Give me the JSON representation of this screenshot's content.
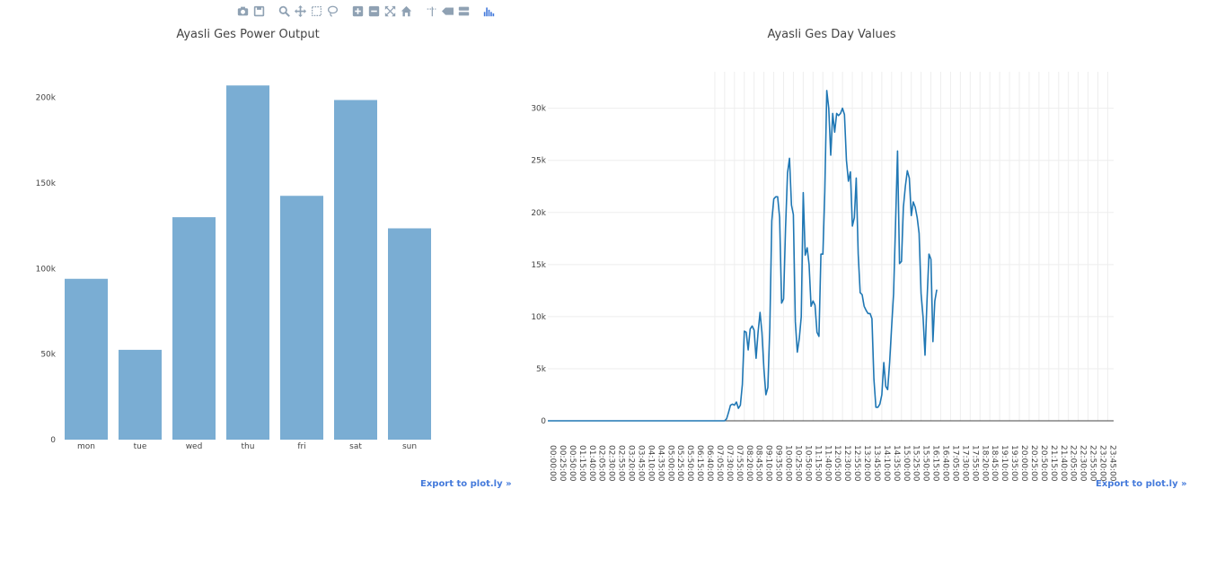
{
  "modebar": {
    "icons": [
      "camera-icon",
      "save-icon",
      "zoom-icon",
      "pan-icon",
      "box-select-icon",
      "lasso-icon",
      "zoom-in-icon",
      "zoom-out-icon",
      "autoscale-icon",
      "home-icon",
      "spike-lines-icon",
      "hover-closest-icon",
      "hover-compare-icon",
      "plotly-logo-icon"
    ],
    "color": "#8fa1b3",
    "active_color": "#447adb"
  },
  "export_label": "Export to plot.ly »",
  "chart_data": [
    {
      "type": "bar",
      "title": "Ayasli Ges Power Output",
      "categories": [
        "mon",
        "tue",
        "wed",
        "thu",
        "fri",
        "sat",
        "sun"
      ],
      "values": [
        94000,
        52500,
        130000,
        207000,
        142500,
        198500,
        123500
      ],
      "ylim": [
        0,
        215000
      ],
      "yticks": [
        0,
        50000,
        100000,
        150000,
        200000
      ],
      "ytick_labels": [
        "0",
        "50k",
        "100k",
        "150k",
        "200k"
      ],
      "color": "#7aadd3",
      "grid": false
    },
    {
      "type": "line",
      "title": "Ayasli Ges Day Values",
      "x_tick_labels": [
        "00:00:00",
        "00:25:00",
        "00:50:00",
        "01:15:00",
        "01:40:00",
        "02:05:00",
        "02:30:00",
        "02:55:00",
        "03:20:00",
        "03:45:00",
        "04:10:00",
        "04:35:00",
        "05:00:00",
        "05:25:00",
        "05:50:00",
        "06:15:00",
        "06:40:00",
        "07:05:00",
        "07:30:00",
        "07:55:00",
        "08:20:00",
        "08:45:00",
        "09:10:00",
        "09:35:00",
        "10:00:00",
        "10:25:00",
        "10:50:00",
        "11:15:00",
        "11:40:00",
        "12:05:00",
        "12:30:00",
        "12:55:00",
        "13:20:00",
        "13:45:00",
        "14:10:00",
        "14:35:00",
        "15:00:00",
        "15:25:00",
        "15:50:00",
        "16:15:00",
        "16:40:00",
        "17:05:00",
        "17:30:00",
        "17:55:00",
        "18:20:00",
        "18:45:00",
        "19:10:00",
        "19:35:00",
        "20:00:00",
        "20:25:00",
        "20:50:00",
        "21:15:00",
        "21:40:00",
        "22:05:00",
        "22:30:00",
        "22:55:00",
        "23:20:00",
        "23:45:00"
      ],
      "yticks": [
        0,
        5000,
        10000,
        15000,
        20000,
        25000,
        30000
      ],
      "ytick_labels": [
        "0",
        "5k",
        "10k",
        "15k",
        "20k",
        "25k",
        "30k"
      ],
      "ylim": [
        0,
        33500
      ],
      "grid": true,
      "color": "#1f77b4",
      "points": [
        [
          "00:00",
          0
        ],
        [
          "07:05",
          0
        ],
        [
          "07:30",
          0
        ],
        [
          "07:35",
          200
        ],
        [
          "07:40",
          800
        ],
        [
          "07:45",
          1500
        ],
        [
          "07:50",
          1600
        ],
        [
          "07:55",
          1500
        ],
        [
          "08:00",
          1800
        ],
        [
          "08:05",
          1200
        ],
        [
          "08:10",
          1500
        ],
        [
          "08:15",
          3500
        ],
        [
          "08:20",
          8600
        ],
        [
          "08:25",
          8500
        ],
        [
          "08:30",
          6800
        ],
        [
          "08:35",
          8800
        ],
        [
          "08:40",
          9100
        ],
        [
          "08:45",
          8700
        ],
        [
          "08:50",
          6000
        ],
        [
          "08:55",
          8500
        ],
        [
          "09:00",
          10400
        ],
        [
          "09:05",
          8500
        ],
        [
          "09:10",
          5000
        ],
        [
          "09:15",
          2500
        ],
        [
          "09:20",
          3200
        ],
        [
          "09:25",
          9000
        ],
        [
          "09:30",
          19200
        ],
        [
          "09:35",
          21300
        ],
        [
          "09:40",
          21500
        ],
        [
          "09:45",
          21500
        ],
        [
          "09:50",
          19500
        ],
        [
          "09:55",
          11300
        ],
        [
          "10:00",
          11700
        ],
        [
          "10:05",
          18500
        ],
        [
          "10:10",
          23800
        ],
        [
          "10:15",
          25200
        ],
        [
          "10:20",
          20700
        ],
        [
          "10:25",
          19800
        ],
        [
          "10:30",
          9500
        ],
        [
          "10:35",
          6600
        ],
        [
          "10:40",
          7900
        ],
        [
          "10:45",
          10000
        ],
        [
          "10:50",
          21900
        ],
        [
          "10:55",
          15900
        ],
        [
          "11:00",
          16600
        ],
        [
          "11:05",
          15000
        ],
        [
          "11:10",
          11000
        ],
        [
          "11:15",
          11500
        ],
        [
          "11:20",
          11100
        ],
        [
          "11:25",
          8500
        ],
        [
          "11:30",
          8100
        ],
        [
          "11:35",
          16000
        ],
        [
          "11:40",
          16000
        ],
        [
          "11:45",
          22000
        ],
        [
          "11:50",
          31700
        ],
        [
          "11:55",
          30000
        ],
        [
          "12:00",
          25500
        ],
        [
          "12:05",
          29500
        ],
        [
          "12:10",
          27700
        ],
        [
          "12:15",
          29500
        ],
        [
          "12:20",
          29300
        ],
        [
          "12:25",
          29500
        ],
        [
          "12:30",
          30000
        ],
        [
          "12:35",
          29400
        ],
        [
          "12:40",
          25000
        ],
        [
          "12:45",
          23000
        ],
        [
          "12:50",
          23900
        ],
        [
          "12:55",
          18700
        ],
        [
          "13:00",
          19500
        ],
        [
          "13:05",
          23300
        ],
        [
          "13:10",
          16000
        ],
        [
          "13:15",
          12300
        ],
        [
          "13:20",
          12100
        ],
        [
          "13:25",
          11000
        ],
        [
          "13:30",
          10600
        ],
        [
          "13:35",
          10300
        ],
        [
          "13:40",
          10300
        ],
        [
          "13:45",
          9800
        ],
        [
          "13:50",
          4000
        ],
        [
          "13:55",
          1300
        ],
        [
          "14:00",
          1300
        ],
        [
          "14:05",
          1600
        ],
        [
          "14:10",
          2500
        ],
        [
          "14:15",
          5600
        ],
        [
          "14:20",
          3300
        ],
        [
          "14:25",
          3000
        ],
        [
          "14:30",
          5600
        ],
        [
          "14:35",
          9000
        ],
        [
          "14:40",
          12200
        ],
        [
          "14:45",
          19000
        ],
        [
          "14:50",
          25900
        ],
        [
          "14:55",
          15100
        ],
        [
          "15:00",
          15300
        ],
        [
          "15:05",
          20500
        ],
        [
          "15:10",
          22500
        ],
        [
          "15:15",
          24000
        ],
        [
          "15:20",
          23300
        ],
        [
          "15:25",
          19700
        ],
        [
          "15:30",
          21000
        ],
        [
          "15:35",
          20500
        ],
        [
          "15:40",
          19500
        ],
        [
          "15:45",
          18000
        ],
        [
          "15:50",
          12200
        ],
        [
          "15:55",
          10000
        ],
        [
          "16:00",
          6300
        ],
        [
          "16:05",
          11500
        ],
        [
          "16:10",
          16000
        ],
        [
          "16:15",
          15500
        ],
        [
          "16:20",
          7600
        ],
        [
          "16:25",
          11500
        ],
        [
          "16:30",
          12600
        ]
      ]
    }
  ]
}
